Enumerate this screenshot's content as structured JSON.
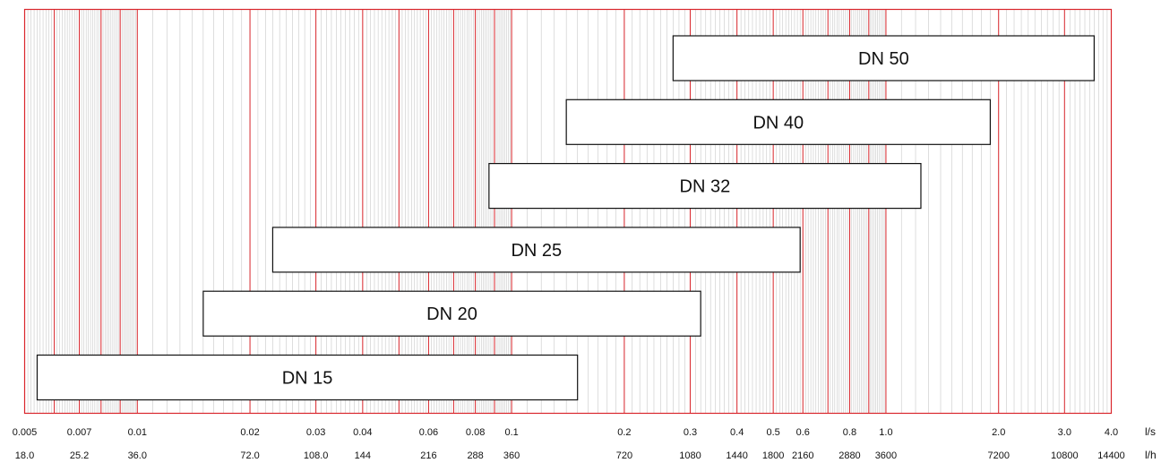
{
  "chart_data": {
    "type": "bar",
    "orientation": "horizontal-range",
    "x_scale": "log",
    "xlim": [
      0.005,
      4.0
    ],
    "grid": true,
    "grid_colors": {
      "minor": "#c8c8c8",
      "major": "#d9262c",
      "frame": "#d9262c"
    },
    "major_gridlines_ls": [
      0.006,
      0.007,
      0.008,
      0.009,
      0.01,
      0.02,
      0.03,
      0.04,
      0.05,
      0.06,
      0.07,
      0.08,
      0.09,
      0.1,
      0.2,
      0.3,
      0.4,
      0.5,
      0.6,
      0.7,
      0.8,
      0.9,
      1.0,
      2.0,
      3.0
    ],
    "x_ticks_ls": [
      {
        "v": 0.005,
        "label": "0.005"
      },
      {
        "v": 0.007,
        "label": "0.007"
      },
      {
        "v": 0.01,
        "label": "0.01"
      },
      {
        "v": 0.02,
        "label": "0.02"
      },
      {
        "v": 0.03,
        "label": "0.03"
      },
      {
        "v": 0.04,
        "label": "0.04"
      },
      {
        "v": 0.06,
        "label": "0.06"
      },
      {
        "v": 0.08,
        "label": "0.08"
      },
      {
        "v": 0.1,
        "label": "0.1"
      },
      {
        "v": 0.2,
        "label": "0.2"
      },
      {
        "v": 0.3,
        "label": "0.3"
      },
      {
        "v": 0.4,
        "label": "0.4"
      },
      {
        "v": 0.5,
        "label": "0.5"
      },
      {
        "v": 0.6,
        "label": "0.6"
      },
      {
        "v": 0.8,
        "label": "0.8"
      },
      {
        "v": 1.0,
        "label": "1.0"
      },
      {
        "v": 2.0,
        "label": "2.0"
      },
      {
        "v": 3.0,
        "label": "3.0"
      },
      {
        "v": 4.0,
        "label": "4.0"
      }
    ],
    "x_ticks_lh": [
      {
        "v": 0.005,
        "label": "18.0"
      },
      {
        "v": 0.007,
        "label": "25.2"
      },
      {
        "v": 0.01,
        "label": "36.0"
      },
      {
        "v": 0.02,
        "label": "72.0"
      },
      {
        "v": 0.03,
        "label": "108.0"
      },
      {
        "v": 0.04,
        "label": "144"
      },
      {
        "v": 0.06,
        "label": "216"
      },
      {
        "v": 0.08,
        "label": "288"
      },
      {
        "v": 0.1,
        "label": "360"
      },
      {
        "v": 0.2,
        "label": "720"
      },
      {
        "v": 0.3,
        "label": "1080"
      },
      {
        "v": 0.4,
        "label": "1440"
      },
      {
        "v": 0.5,
        "label": "1800"
      },
      {
        "v": 0.6,
        "label": "2160"
      },
      {
        "v": 0.8,
        "label": "2880"
      },
      {
        "v": 1.0,
        "label": "3600"
      },
      {
        "v": 2.0,
        "label": "7200"
      },
      {
        "v": 3.0,
        "label": "10800"
      },
      {
        "v": 4.0,
        "label": "14400"
      }
    ],
    "unit_labels": {
      "ls": "l/s",
      "lh": "l/h"
    },
    "categories": [
      "DN 50",
      "DN 40",
      "DN 32",
      "DN 25",
      "DN 20",
      "DN 15"
    ],
    "ranges": [
      {
        "label": "DN 50",
        "min": 0.27,
        "max": 3.6
      },
      {
        "label": "DN 40",
        "min": 0.14,
        "max": 1.9
      },
      {
        "label": "DN 32",
        "min": 0.087,
        "max": 1.24
      },
      {
        "label": "DN 25",
        "min": 0.023,
        "max": 0.59
      },
      {
        "label": "DN 20",
        "min": 0.015,
        "max": 0.32
      },
      {
        "label": "DN 15",
        "min": 0.0054,
        "max": 0.15
      }
    ]
  }
}
